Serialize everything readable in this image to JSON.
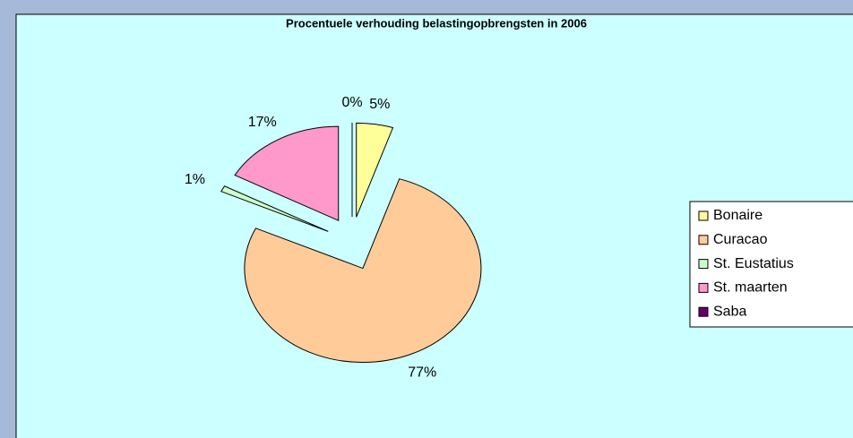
{
  "chart_data": {
    "type": "pie",
    "title": "Procentuele verhouding belastingopbrengsten in 2006",
    "categories": [
      "Bonaire",
      "Curacao",
      "St. Eustatius",
      "St. maarten",
      "Saba"
    ],
    "values": [
      5,
      77,
      1,
      17,
      0
    ],
    "value_labels": [
      "5%",
      "77%",
      "1%",
      "17%",
      "0%"
    ],
    "colors": [
      "#ffff99",
      "#ffcc99",
      "#ccffcc",
      "#ff99cc",
      "#660066"
    ],
    "legend": "right"
  }
}
